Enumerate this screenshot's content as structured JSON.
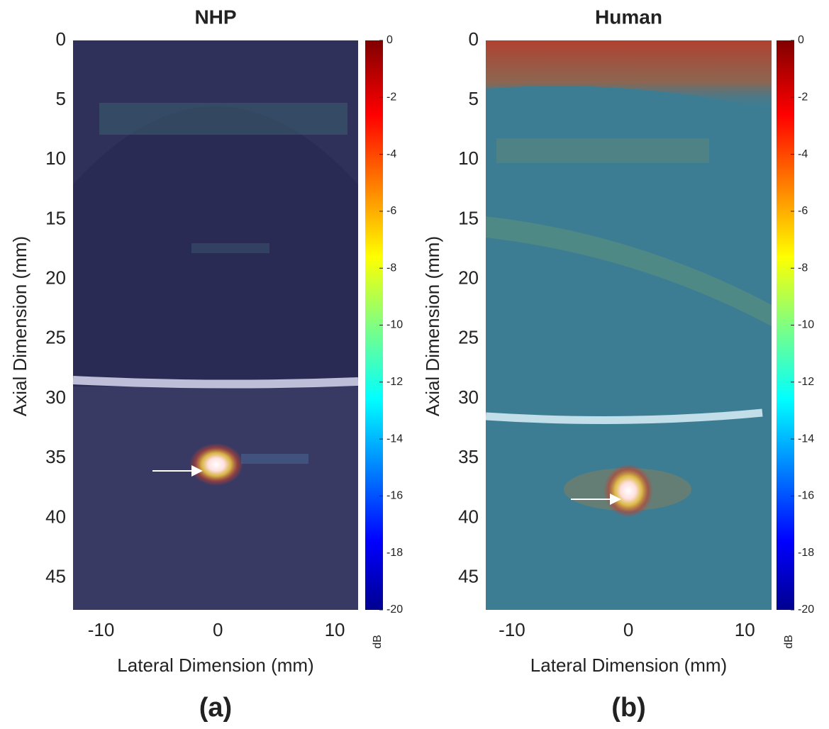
{
  "chart_data": [
    {
      "type": "image",
      "title": "NHP",
      "xlabel": "Lateral Dimension (mm)",
      "ylabel": "Axial Dimension (mm)",
      "xlim": [
        -12.4,
        12
      ],
      "xticks": [
        -10,
        0,
        10
      ],
      "ylim": [
        0,
        47.7
      ],
      "yticks": [
        0,
        5,
        10,
        15,
        20,
        25,
        30,
        35,
        40,
        45
      ],
      "colorbar": {
        "label": "dB",
        "lim": [
          -20,
          0
        ],
        "ticks": [
          0,
          -2,
          -4,
          -6,
          -8,
          -10,
          -12,
          -14,
          -16,
          -18,
          -20
        ]
      },
      "caption": "(a)"
    },
    {
      "type": "image",
      "title": "Human",
      "xlabel": "Lateral Dimension (mm)",
      "ylabel": "Axial Dimension (mm)",
      "xlim": [
        -12.25,
        12.3
      ],
      "xticks": [
        -10,
        0,
        10
      ],
      "ylim": [
        0,
        47.7
      ],
      "yticks": [
        0,
        5,
        10,
        15,
        20,
        25,
        30,
        35,
        40,
        45
      ],
      "colorbar": {
        "label": "dB",
        "lim": [
          -20,
          0
        ],
        "ticks": [
          0,
          -2,
          -4,
          -6,
          -8,
          -10,
          -12,
          -14,
          -16,
          -18,
          -20
        ]
      },
      "caption": "(b)"
    }
  ]
}
